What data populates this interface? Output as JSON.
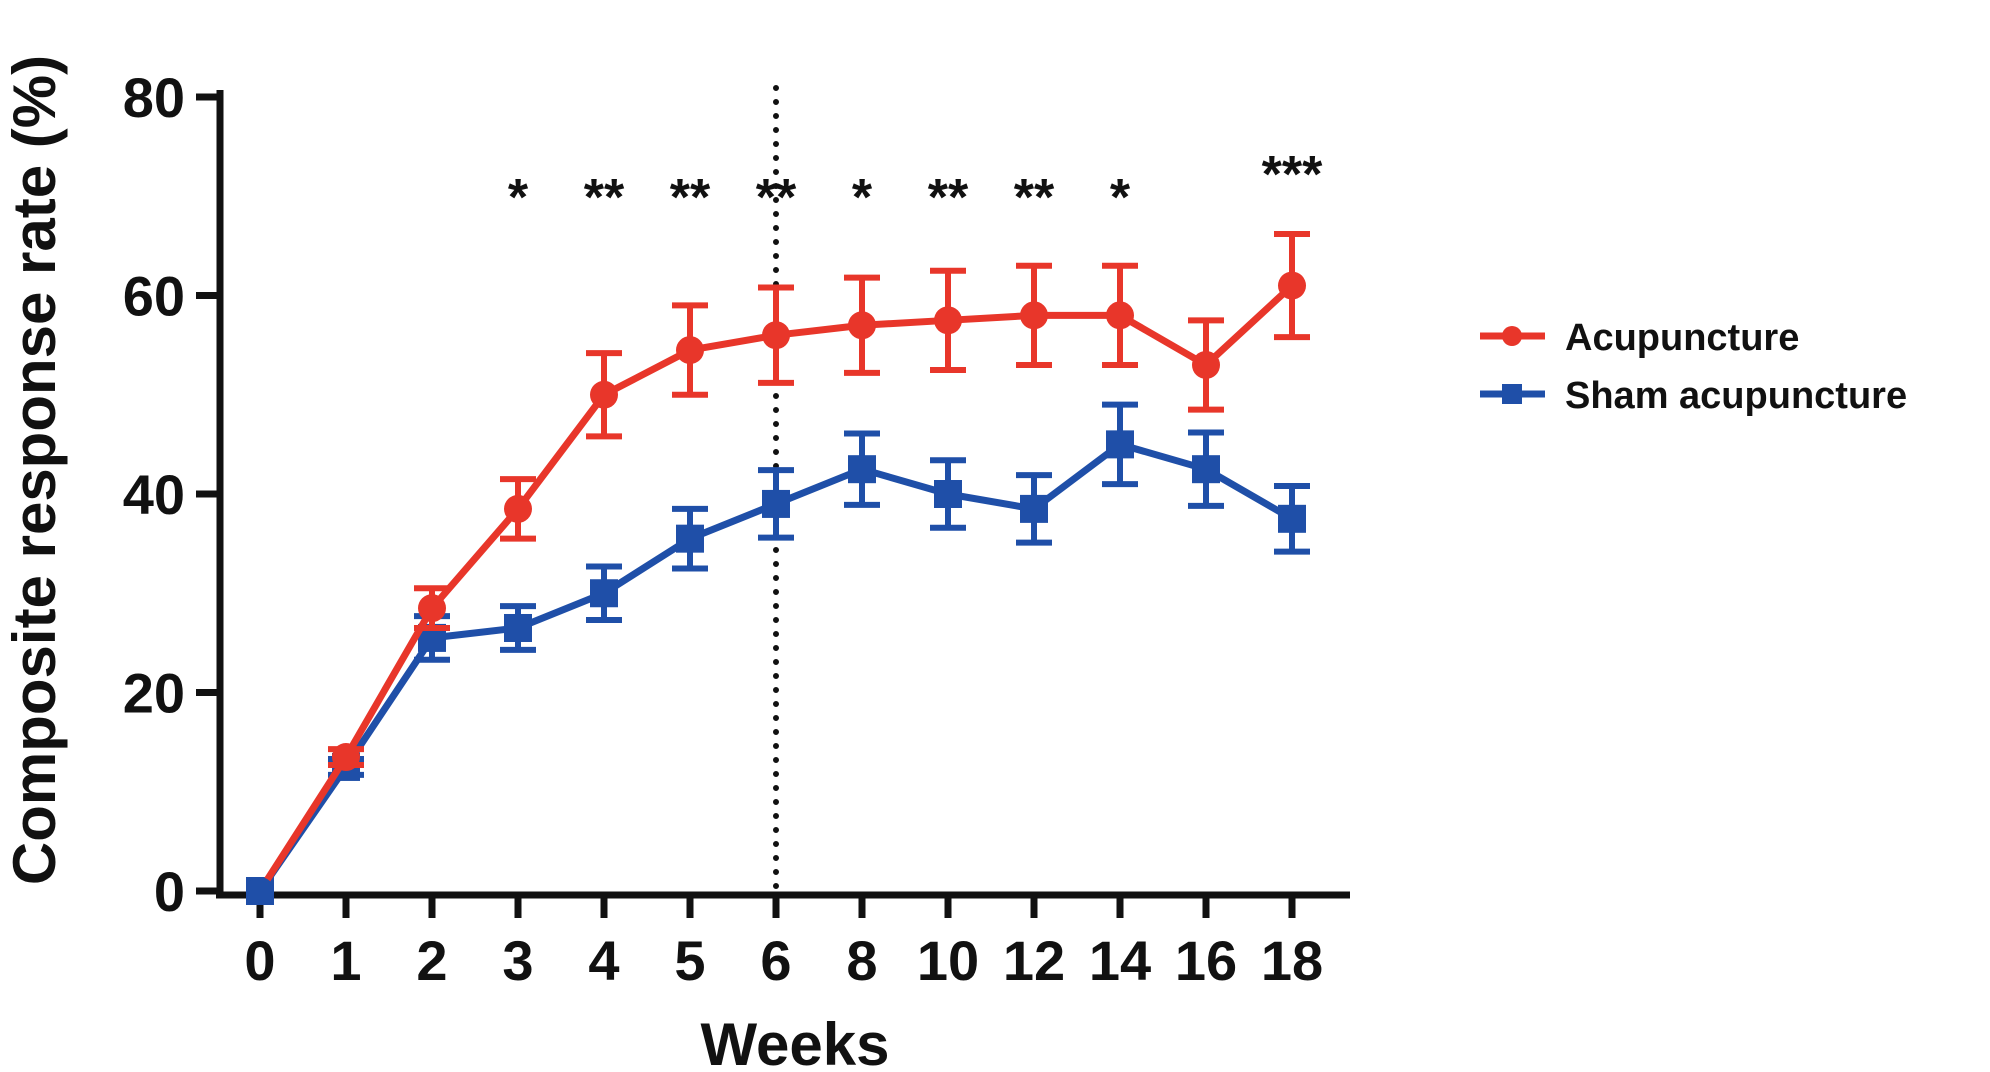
{
  "chart_data": {
    "type": "line",
    "xlabel": "Weeks",
    "ylabel": "Composite response rate  (%)",
    "ylim": [
      0,
      80
    ],
    "yticks": [
      0,
      20,
      40,
      60,
      80
    ],
    "x": [
      "0",
      "1",
      "2",
      "3",
      "4",
      "5",
      "6",
      "8",
      "10",
      "12",
      "14",
      "16",
      "18"
    ],
    "reference_line": {
      "x": "6",
      "style": "dotted",
      "color": "#111111"
    },
    "series": [
      {
        "name": "Acupuncture",
        "marker": "circle",
        "color": "#e8362a",
        "values": [
          0,
          13.5,
          28.5,
          38.5,
          50,
          54.5,
          56,
          57,
          57.5,
          58,
          58,
          53,
          61
        ],
        "error": [
          0,
          0.8,
          2,
          3,
          4.2,
          4.5,
          4.8,
          4.8,
          5,
          5,
          5,
          4.5,
          5.2
        ]
      },
      {
        "name": "Sham acupuncture",
        "marker": "square",
        "color": "#1f4fa8",
        "values": [
          0,
          12.5,
          25.5,
          26.5,
          30,
          35.5,
          39,
          42.5,
          40,
          38.5,
          45,
          42.5,
          37.5
        ],
        "error": [
          0,
          0.8,
          2.2,
          2.2,
          2.7,
          3,
          3.4,
          3.6,
          3.4,
          3.4,
          4,
          3.7,
          3.3
        ]
      }
    ],
    "annotations": [
      {
        "x": "3",
        "text": "*"
      },
      {
        "x": "4",
        "text": "**"
      },
      {
        "x": "5",
        "text": "**"
      },
      {
        "x": "6",
        "text": "**"
      },
      {
        "x": "8",
        "text": "*"
      },
      {
        "x": "10",
        "text": "**"
      },
      {
        "x": "12",
        "text": "**"
      },
      {
        "x": "14",
        "text": "*"
      },
      {
        "x": "18",
        "text": "***"
      }
    ],
    "legend_position": "right"
  }
}
